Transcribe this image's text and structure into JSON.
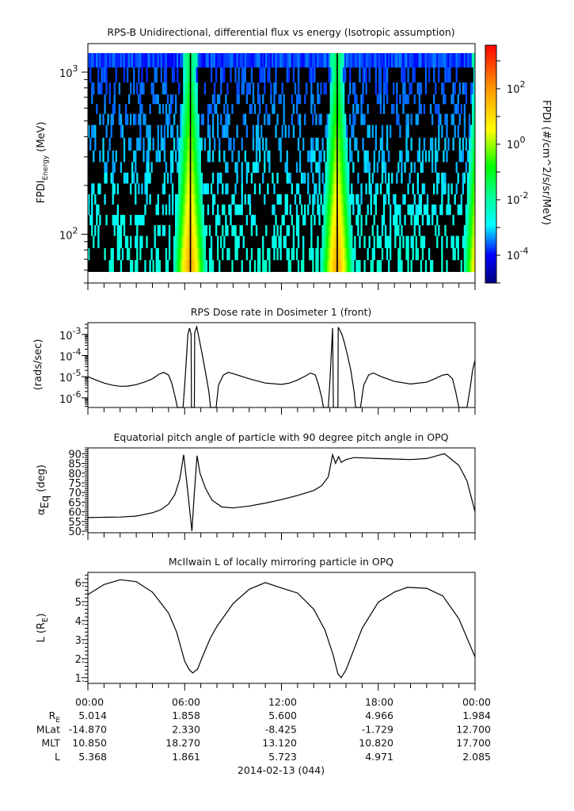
{
  "chart_data": [
    {
      "type": "heatmap",
      "title": "RPS-B  Unidirectional, differential flux vs energy (Isotropic assumption)",
      "ylabel": {
        "main": "FPDI",
        "sub": "Energy",
        "unit": " (MeV)"
      },
      "yscale": "log",
      "ylim": [
        50,
        1500
      ],
      "y_ticks": [
        {
          "value": 100,
          "base": "10",
          "exp": "2"
        },
        {
          "value": 1000,
          "base": "10",
          "exp": "3"
        }
      ],
      "energy_channels_MeV": [
        1197,
        956,
        780,
        681,
        595,
        514,
        434,
        358,
        302,
        258,
        223,
        190,
        164,
        142,
        122,
        106,
        90,
        75,
        64
      ],
      "belt_crossing_hours": [
        6.33,
        15.45,
        24.3
      ],
      "colorbar": {
        "label": "FPDI (#/cm^2/s/sr/MeV)",
        "scale": "log",
        "range": [
          1e-05,
          3700
        ],
        "ticks": [
          {
            "base": "10",
            "exp": "2",
            "log": 2
          },
          {
            "base": "10",
            "exp": "0",
            "log": 0
          },
          {
            "base": "10",
            "exp": "-2",
            "log": -2
          },
          {
            "base": "10",
            "exp": "-4",
            "log": -4
          }
        ],
        "colormap": [
          [
            "-5",
            "#00007f"
          ],
          [
            "-4",
            "#0000ff"
          ],
          [
            "-2.9",
            "#00ffff"
          ],
          [
            "-1.9",
            "#00ff99"
          ],
          [
            "-0.8",
            "#00ff00"
          ],
          [
            "0.5",
            "#ffff00"
          ],
          [
            "2",
            "#ff9900"
          ],
          [
            "3.6",
            "#ff0000"
          ]
        ]
      }
    },
    {
      "type": "line",
      "title": "RPS  Dose rate in Dosimeter 1 (front)",
      "ylabel": "(rads/sec)",
      "yscale": "log",
      "ylim": [
        3.5e-07,
        0.0036
      ],
      "y_ticks": [
        {
          "value": 1e-06,
          "base": "10",
          "exp": "-6"
        },
        {
          "value": 1e-05,
          "base": "10",
          "exp": "-5"
        },
        {
          "value": 0.0001,
          "base": "10",
          "exp": "-4"
        },
        {
          "value": 0.001,
          "base": "10",
          "exp": "-3"
        }
      ],
      "x_hours": [
        0,
        0.5,
        1,
        1.5,
        2,
        2.5,
        3,
        3.5,
        4,
        4.4,
        4.7,
        5,
        5.2,
        5.4,
        5.55,
        5.9,
        6.0,
        6.1,
        6.2,
        6.3,
        6.4,
        6.42,
        6.6,
        6.62,
        6.75,
        6.9,
        7.1,
        7.3,
        7.5,
        7.6,
        7.95,
        8.1,
        8.4,
        8.7,
        9,
        10,
        11,
        12,
        12.5,
        13,
        13.5,
        13.8,
        14.1,
        14.3,
        14.5,
        14.6,
        14.9,
        15.0,
        15.1,
        15.17,
        15.22,
        15.5,
        15.52,
        15.75,
        15.9,
        16.1,
        16.3,
        16.5,
        16.6,
        16.9,
        17.1,
        17.4,
        17.7,
        18.2,
        19,
        20,
        21,
        21.5,
        22,
        22.3,
        22.6,
        22.8,
        23,
        23.5,
        23.7,
        23.85,
        24
      ],
      "values": [
        1e-05,
        7e-06,
        5e-06,
        4e-06,
        3.5e-06,
        3.6e-06,
        4.2e-06,
        5.5e-06,
        8e-06,
        1.3e-05,
        1.6e-05,
        1.2e-05,
        5e-06,
        1.2e-06,
        3.5e-07,
        3.5e-07,
        4e-06,
        6e-05,
        0.001,
        0.002,
        0.001,
        3.5e-07,
        3.5e-07,
        0.0012,
        0.0023,
        0.0006,
        0.0001,
        1.5e-05,
        2e-06,
        3.5e-07,
        3.5e-07,
        4e-06,
        1.2e-05,
        1.6e-05,
        1.4e-05,
        8e-06,
        5e-06,
        4.3e-06,
        5e-06,
        7e-06,
        1.1e-05,
        1.5e-05,
        1.2e-05,
        4e-06,
        1e-06,
        3.5e-07,
        3.5e-07,
        5e-06,
        0.0002,
        0.002,
        3.5e-07,
        3.5e-07,
        0.0022,
        0.001,
        0.0004,
        0.0001,
        2e-05,
        2e-06,
        3.5e-07,
        3.5e-07,
        4e-06,
        1.2e-05,
        1.5e-05,
        1e-05,
        6e-06,
        4.5e-06,
        5.5e-06,
        8e-06,
        1.2e-05,
        1.3e-05,
        8e-06,
        2e-06,
        3.5e-07,
        3.5e-07,
        3e-06,
        2e-05,
        6e-05
      ]
    },
    {
      "type": "line",
      "title": "Equatorial pitch angle of particle with 90 degree pitch angle in OPQ",
      "ylabel": {
        "main": "α",
        "sub": "Eq",
        "unit": " (deg)"
      },
      "ylim": [
        49.2,
        93
      ],
      "y_ticks": [
        "50.",
        "55.",
        "60.",
        "65.",
        "70.",
        "75.",
        "80.",
        "85.",
        "90."
      ],
      "x_hours": [
        0,
        1,
        2,
        3,
        4,
        4.5,
        5,
        5.4,
        5.7,
        5.94,
        6.2,
        6.45,
        6.6,
        6.77,
        6.95,
        7.3,
        7.7,
        8.3,
        9,
        10,
        11,
        12,
        13,
        14,
        14.5,
        14.9,
        15.17,
        15.35,
        15.55,
        15.7,
        16,
        16.5,
        18,
        20,
        21,
        22.1,
        23,
        23.5,
        24
      ],
      "values": [
        57,
        57.2,
        57.3,
        57.8,
        59.5,
        61,
        64,
        69,
        77,
        89.5,
        70,
        50,
        70,
        89,
        80,
        72,
        66,
        62.5,
        62,
        63,
        64.5,
        66.3,
        68.5,
        71,
        73.5,
        78,
        89.5,
        85,
        88.5,
        85.5,
        87,
        88,
        87.5,
        87,
        87.5,
        90,
        84,
        76,
        60
      ]
    },
    {
      "type": "line",
      "title": "McIlwain L of locally mirroring particle in OPQ",
      "ylabel": {
        "main": "L (R",
        "sub": "E",
        "unit": ")"
      },
      "ylim": [
        0.7,
        6.54
      ],
      "y_ticks": [
        "1.",
        "2.",
        "3.",
        "4.",
        "5.",
        "6."
      ],
      "x_hours": [
        0,
        1,
        2,
        3,
        4,
        5,
        5.5,
        6,
        6.3,
        6.5,
        6.8,
        7.2,
        7.6,
        8,
        9,
        10,
        11,
        12,
        13,
        14,
        14.7,
        15.2,
        15.5,
        15.7,
        16,
        16.5,
        17,
        18,
        19,
        19.8,
        21,
        22,
        23,
        24
      ],
      "values": [
        5.37,
        5.9,
        6.15,
        6.05,
        5.5,
        4.4,
        3.4,
        1.86,
        1.4,
        1.25,
        1.45,
        2.3,
        3.1,
        3.7,
        4.9,
        5.65,
        6.0,
        5.72,
        5.45,
        4.6,
        3.5,
        2.2,
        1.2,
        1.0,
        1.4,
        2.5,
        3.6,
        4.97,
        5.5,
        5.75,
        5.7,
        5.3,
        4.1,
        2.09
      ]
    }
  ],
  "x_axis": {
    "tick_labels": [
      "00:00",
      "06:00",
      "12:00",
      "18:00",
      "00:00"
    ],
    "date_label": "2014-02-13 (044)"
  },
  "ephemeris": [
    {
      "label": "R",
      "label_sub": "E",
      "values": [
        "5.014",
        "1.858",
        "5.600",
        "4.966",
        "1.984"
      ]
    },
    {
      "label": "MLat",
      "label_sub": "",
      "values": [
        "-14.870",
        "2.330",
        "-8.425",
        "-1.729",
        "12.700"
      ]
    },
    {
      "label": "MLT",
      "label_sub": "",
      "values": [
        "10.850",
        "18.270",
        "13.120",
        "10.820",
        "17.700"
      ]
    },
    {
      "label": "L",
      "label_sub": "",
      "values": [
        "5.368",
        "1.861",
        "5.723",
        "4.971",
        "2.085"
      ]
    }
  ]
}
